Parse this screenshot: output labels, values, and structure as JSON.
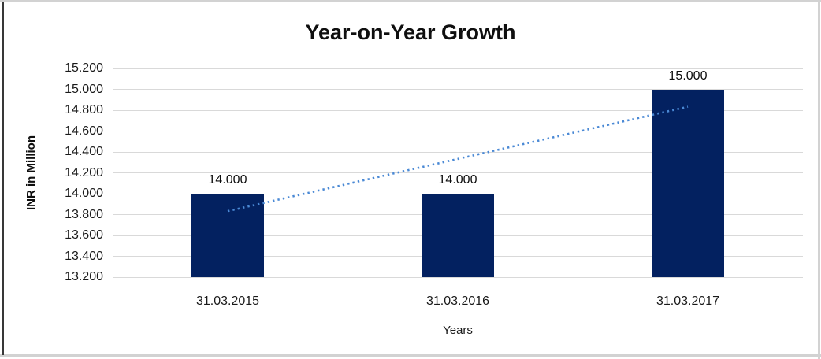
{
  "chart_data": {
    "type": "bar",
    "title": "Year-on-Year Growth",
    "xlabel": "Years",
    "ylabel": "INR in Million",
    "categories": [
      "31.03.2015",
      "31.03.2016",
      "31.03.2017"
    ],
    "values": [
      14.0,
      14.0,
      15.0
    ],
    "data_labels": [
      "14.000",
      "14.000",
      "15.000"
    ],
    "ylim": [
      13.2,
      15.2
    ],
    "ytick_step": 0.2,
    "ytick_labels": [
      "13.200",
      "13.400",
      "13.600",
      "13.800",
      "14.000",
      "14.200",
      "14.400",
      "14.600",
      "14.800",
      "15.000",
      "15.200"
    ],
    "grid": true,
    "legend": "none",
    "bar_color": "#032160",
    "gridline_color": "#d9d9d9",
    "trendline": {
      "type": "linear",
      "style": "dotted",
      "color": "#4a89d5",
      "fitted_values": [
        13.833,
        14.333,
        14.833
      ]
    }
  }
}
